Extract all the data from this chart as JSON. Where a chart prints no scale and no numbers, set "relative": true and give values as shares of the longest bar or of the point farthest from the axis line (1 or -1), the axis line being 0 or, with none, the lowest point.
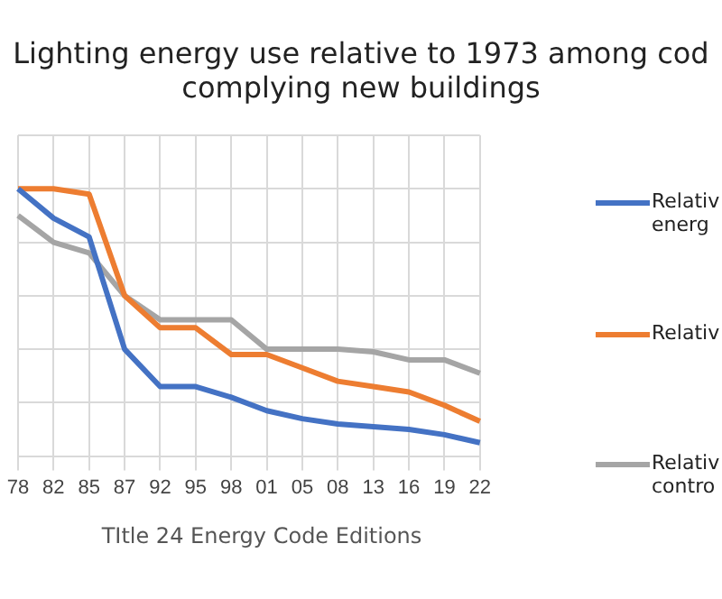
{
  "chart_data": {
    "type": "line",
    "title": "Lighting energy use relative to 1973 among cod\ncomplying new buildings",
    "xlabel": "TItle 24 Energy Code Editions",
    "categories": [
      "78",
      "82",
      "85",
      "87",
      "92",
      "95",
      "98",
      "01",
      "05",
      "08",
      "13",
      "16",
      "19",
      "22"
    ],
    "relative": true,
    "grid": true,
    "legend": "right",
    "marker": "none",
    "series": [
      {
        "name": "Relativ\nenerg",
        "color": "#4472c4",
        "values": [
          1.0,
          0.89,
          0.82,
          0.4,
          0.26,
          0.26,
          0.22,
          0.17,
          0.14,
          0.12,
          0.11,
          0.1,
          0.08,
          0.05
        ]
      },
      {
        "name": "Relativ",
        "color": "#ed7d31",
        "values": [
          1.0,
          1.0,
          0.98,
          0.6,
          0.48,
          0.48,
          0.38,
          0.38,
          0.33,
          0.28,
          0.26,
          0.24,
          0.19,
          0.13
        ]
      },
      {
        "name": "Relativ\ncontro",
        "color": "#a5a5a5",
        "values": [
          0.9,
          0.8,
          0.76,
          0.6,
          0.51,
          0.51,
          0.51,
          0.4,
          0.4,
          0.4,
          0.39,
          0.36,
          0.36,
          0.31
        ]
      }
    ]
  }
}
